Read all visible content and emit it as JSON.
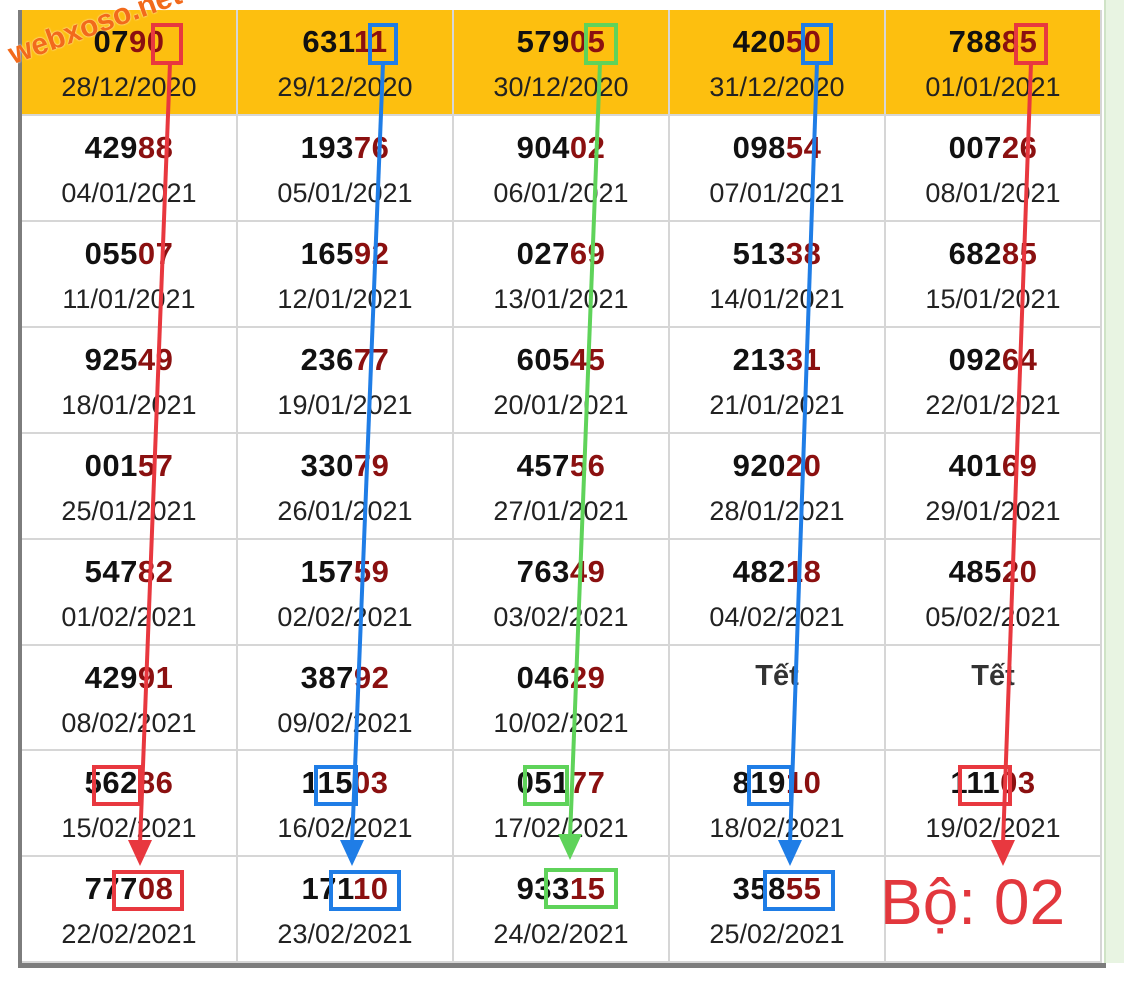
{
  "colors": {
    "header_bg": "#fdbf0f",
    "digit_highlight": "#8b1010",
    "arrow_red": "#e8383f",
    "arrow_blue": "#1f7de6",
    "arrow_green": "#5fd35a",
    "label_red": "#e2373d",
    "watermark": "#f26a1b"
  },
  "watermark": "webxoso.net",
  "result_label": "Bộ: 02",
  "special_text": "Tết",
  "rows": [
    {
      "cells": [
        {
          "prefix": "07",
          "suffix": "90",
          "date": "28/12/2020"
        },
        {
          "prefix": "631",
          "suffix": "11",
          "date": "29/12/2020"
        },
        {
          "prefix": "579",
          "suffix": "05",
          "date": "30/12/2020"
        },
        {
          "prefix": "420",
          "suffix": "50",
          "date": "31/12/2020"
        },
        {
          "prefix": "788",
          "suffix": "85",
          "date": "01/01/2021"
        }
      ]
    },
    {
      "cells": [
        {
          "prefix": "429",
          "suffix": "88",
          "date": "04/01/2021"
        },
        {
          "prefix": "193",
          "suffix": "76",
          "date": "05/01/2021"
        },
        {
          "prefix": "904",
          "suffix": "02",
          "date": "06/01/2021"
        },
        {
          "prefix": "098",
          "suffix": "54",
          "date": "07/01/2021"
        },
        {
          "prefix": "007",
          "suffix": "26",
          "date": "08/01/2021"
        }
      ]
    },
    {
      "cells": [
        {
          "prefix": "055",
          "suffix": "07",
          "date": "11/01/2021"
        },
        {
          "prefix": "165",
          "suffix": "92",
          "date": "12/01/2021"
        },
        {
          "prefix": "027",
          "suffix": "69",
          "date": "13/01/2021"
        },
        {
          "prefix": "513",
          "suffix": "38",
          "date": "14/01/2021"
        },
        {
          "prefix": "682",
          "suffix": "85",
          "date": "15/01/2021"
        }
      ]
    },
    {
      "cells": [
        {
          "prefix": "925",
          "suffix": "49",
          "date": "18/01/2021"
        },
        {
          "prefix": "236",
          "suffix": "77",
          "date": "19/01/2021"
        },
        {
          "prefix": "605",
          "suffix": "45",
          "date": "20/01/2021"
        },
        {
          "prefix": "213",
          "suffix": "31",
          "date": "21/01/2021"
        },
        {
          "prefix": "092",
          "suffix": "64",
          "date": "22/01/2021"
        }
      ]
    },
    {
      "cells": [
        {
          "prefix": "001",
          "suffix": "57",
          "date": "25/01/2021"
        },
        {
          "prefix": "330",
          "suffix": "79",
          "date": "26/01/2021"
        },
        {
          "prefix": "457",
          "suffix": "56",
          "date": "27/01/2021"
        },
        {
          "prefix": "920",
          "suffix": "20",
          "date": "28/01/2021"
        },
        {
          "prefix": "401",
          "suffix": "69",
          "date": "29/01/2021"
        }
      ]
    },
    {
      "cells": [
        {
          "prefix": "547",
          "suffix": "82",
          "date": "01/02/2021"
        },
        {
          "prefix": "157",
          "suffix": "59",
          "date": "02/02/2021"
        },
        {
          "prefix": "763",
          "suffix": "49",
          "date": "03/02/2021"
        },
        {
          "prefix": "482",
          "suffix": "18",
          "date": "04/02/2021"
        },
        {
          "prefix": "485",
          "suffix": "20",
          "date": "05/02/2021"
        }
      ]
    },
    {
      "cells": [
        {
          "prefix": "429",
          "suffix": "91",
          "date": "08/02/2021"
        },
        {
          "prefix": "387",
          "suffix": "92",
          "date": "09/02/2021"
        },
        {
          "prefix": "046",
          "suffix": "29",
          "date": "10/02/2021"
        },
        {
          "tet": true,
          "date": ""
        },
        {
          "tet": true,
          "date": ""
        }
      ]
    },
    {
      "cells": [
        {
          "prefix": "562",
          "suffix": "86",
          "date": "15/02/2021"
        },
        {
          "prefix": "115",
          "suffix": "03",
          "date": "16/02/2021"
        },
        {
          "prefix": "051",
          "suffix": "77",
          "date": "17/02/2021"
        },
        {
          "prefix": "819",
          "suffix": "10",
          "date": "18/02/2021"
        },
        {
          "prefix": "111",
          "suffix": "03",
          "date": "19/02/2021"
        }
      ]
    },
    {
      "cells": [
        {
          "prefix": "777",
          "suffix": "08",
          "date": "22/02/2021"
        },
        {
          "prefix": "171",
          "suffix": "10",
          "date": "23/02/2021"
        },
        {
          "prefix": "933",
          "suffix": "15",
          "date": "24/02/2021"
        },
        {
          "prefix": "358",
          "suffix": "55",
          "date": "25/02/2021"
        },
        {
          "empty": true
        }
      ]
    }
  ]
}
